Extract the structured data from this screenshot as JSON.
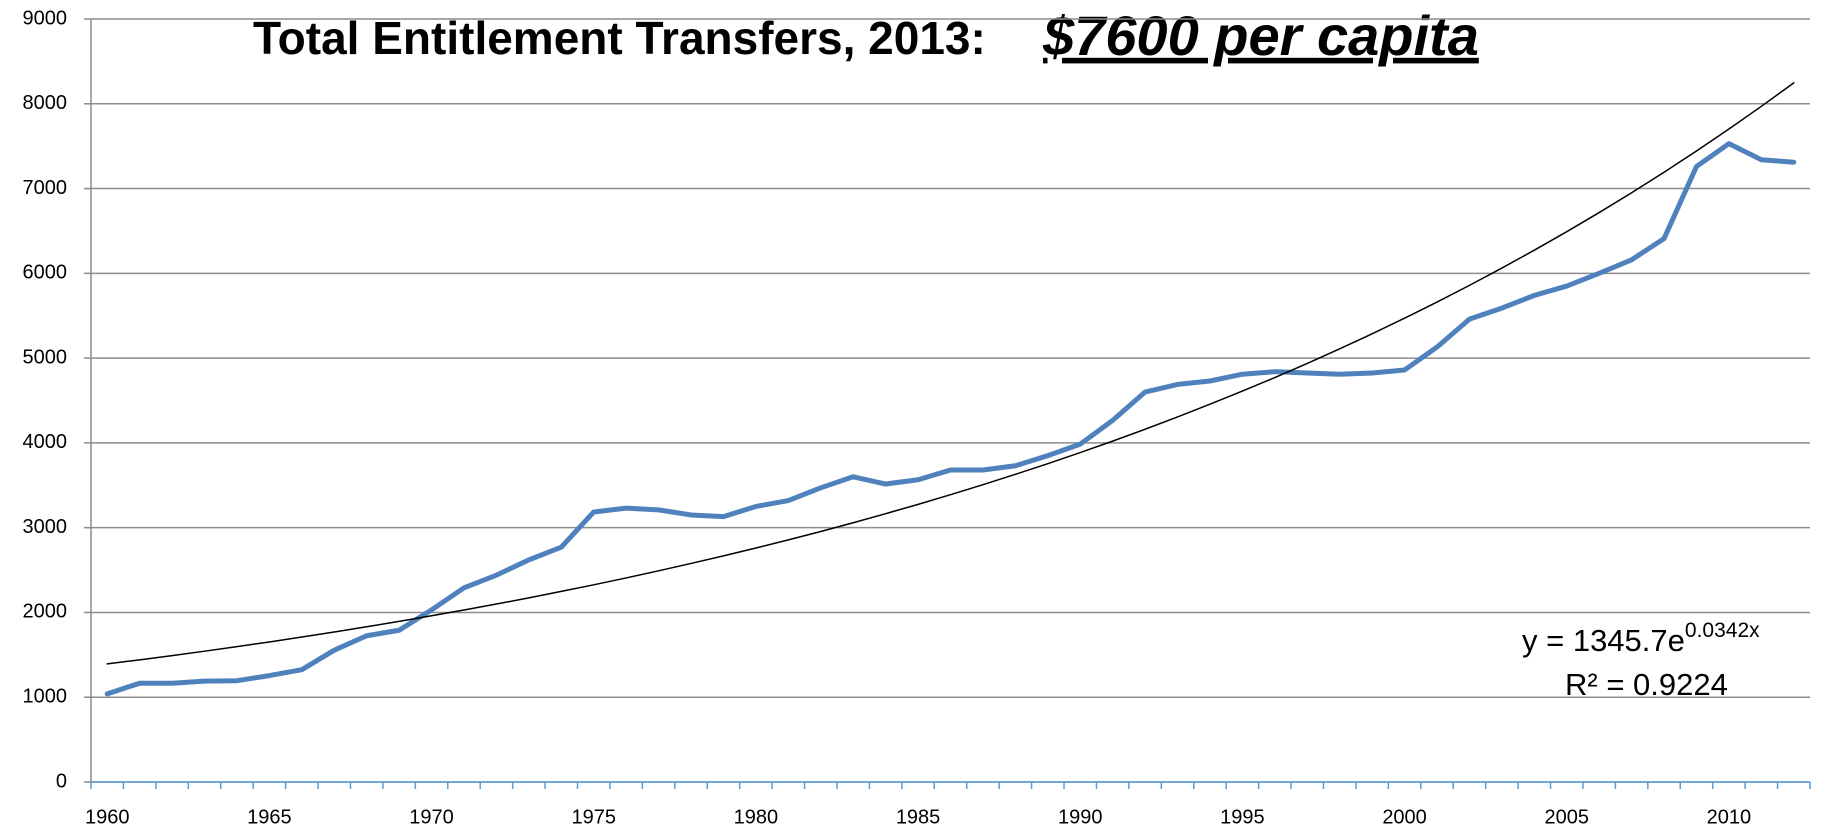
{
  "chart_data": {
    "type": "line",
    "title": "Total Entitlement Transfers, 2013:",
    "subtitle": "$7600 per capita",
    "equation_base": "y = 1345.7e",
    "equation_exponent": "0.0342x",
    "r_squared": "R² = 0.9224",
    "categories": [
      "1960",
      null,
      null,
      null,
      null,
      "1965",
      null,
      null,
      null,
      null,
      "1970",
      null,
      null,
      null,
      null,
      "1975",
      null,
      null,
      null,
      null,
      "1980",
      null,
      null,
      null,
      null,
      "1985",
      null,
      null,
      null,
      null,
      "1990",
      null,
      null,
      null,
      null,
      "1995",
      null,
      null,
      null,
      null,
      "2000",
      null,
      null,
      null,
      null,
      "2005",
      null,
      null,
      null,
      null,
      "2010",
      null,
      null
    ],
    "series": [
      {
        "color": "#4f81bd",
        "width": 5,
        "values": [
          1040,
          1165,
          1165,
          1190,
          1195,
          1255,
          1325,
          1555,
          1725,
          1790,
          2030,
          2290,
          2440,
          2620,
          2770,
          3185,
          3230,
          3210,
          3150,
          3130,
          3250,
          3320,
          3470,
          3600,
          3515,
          3565,
          3680,
          3680,
          3730,
          3850,
          3985,
          4265,
          4600,
          4690,
          4730,
          4810,
          4840,
          4825,
          4810,
          4825,
          4860,
          5130,
          5460,
          5590,
          5740,
          5850,
          6000,
          6160,
          6410,
          7260,
          7530,
          7340,
          7310
        ]
      },
      {
        "color": "#000000",
        "width": 1.5,
        "values": [
          1393,
          1441,
          1491,
          1543,
          1597,
          1652,
          1710,
          1769,
          1831,
          1895,
          1961,
          2029,
          2099,
          2172,
          2248,
          2326,
          2407,
          2491,
          2578,
          2667,
          2760,
          2856,
          2955,
          3058,
          3165,
          3275,
          3389,
          3507,
          3629,
          3755,
          3886,
          4021,
          4161,
          4306,
          4456,
          4611,
          4771,
          4937,
          5109,
          5287,
          5471,
          5661,
          5858,
          6062,
          6273,
          6491,
          6717,
          6950,
          7192,
          7443,
          7702,
          7970,
          8247
        ]
      }
    ],
    "ylim": [
      0,
      9000
    ],
    "yticks": [
      0,
      1000,
      2000,
      3000,
      4000,
      5000,
      6000,
      7000,
      8000,
      9000
    ],
    "grid": true
  }
}
